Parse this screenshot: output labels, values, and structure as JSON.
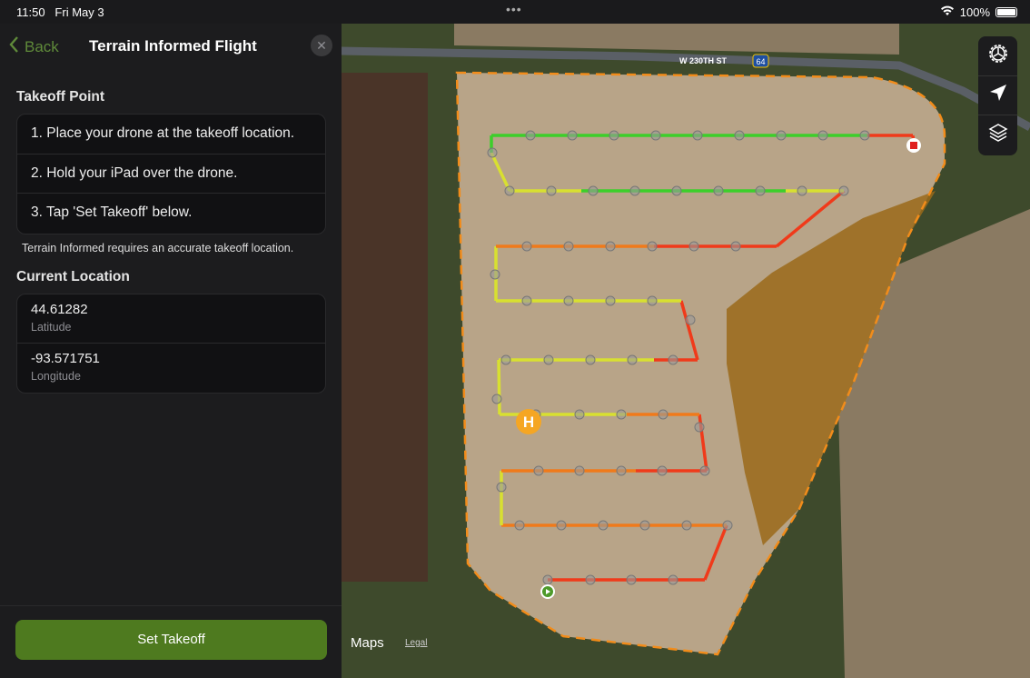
{
  "status_bar": {
    "time": "11:50",
    "date": "Fri May 3",
    "battery": "100%"
  },
  "header": {
    "back_label": "Back",
    "title": "Terrain Informed Flight"
  },
  "takeoff": {
    "heading": "Takeoff Point",
    "steps": [
      "1. Place your drone at the takeoff location.",
      "2. Hold your iPad over the drone.",
      "3. Tap 'Set Takeoff' below."
    ],
    "note": "Terrain Informed requires an accurate takeoff location."
  },
  "location": {
    "heading": "Current Location",
    "latitude": "44.61282",
    "latitude_label": "Latitude",
    "longitude": "-93.571751",
    "longitude_label": "Longitude"
  },
  "footer": {
    "set_takeoff_label": "Set Takeoff"
  },
  "map": {
    "road_label": "W 230TH ST",
    "route_shield": "64",
    "home_marker": "H",
    "attribution": "Maps",
    "legal": "Legal",
    "tools": [
      "settings-icon",
      "location-arrow-icon",
      "layers-icon"
    ],
    "colors": {
      "accent": "#4e7a1f",
      "boundary": "#f28c1a",
      "low": "#3ccf2a",
      "mid": "#d8e030",
      "high": "#f07a1a",
      "max": "#f03a1a"
    }
  }
}
